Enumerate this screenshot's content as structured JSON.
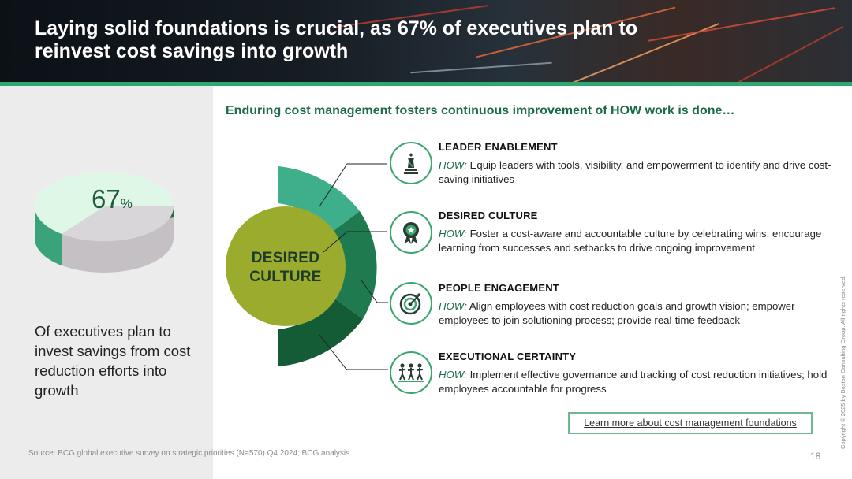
{
  "header": {
    "title_line1": "Laying solid foundations is crucial, as 67% of executives plan to",
    "title_line2": "reinvest cost savings into growth"
  },
  "stat": {
    "value": "67",
    "unit": "%",
    "share": 0.67,
    "label": "Of executives plan to invest savings from cost reduction efforts into growth"
  },
  "subheading": "Enduring cost management fosters continuous improvement of HOW work is done…",
  "wheel": {
    "center_line1": "DESIRED",
    "center_line2": "CULTURE"
  },
  "items": [
    {
      "title": "LEADER ENABLEMENT",
      "how": "HOW:",
      "desc": "Equip leaders with tools, visibility, and empowerment to identify and drive cost-saving initiatives",
      "icon": "chess-piece-icon"
    },
    {
      "title": "DESIRED CULTURE",
      "how": "HOW:",
      "desc": "Foster a cost-aware and accountable culture by celebrating wins; encourage learning from successes and setbacks to drive ongoing improvement",
      "icon": "award-badge-icon"
    },
    {
      "title": "PEOPLE ENGAGEMENT",
      "how": "HOW:",
      "desc": "Align employees with cost reduction goals and growth vision; empower employees to join solutioning process; provide real-time feedback",
      "icon": "target-icon"
    },
    {
      "title": "EXECUTIONAL CERTAINTY",
      "how": "HOW:",
      "desc": "Implement effective governance and tracking of cost reduction initiatives; hold employees accountable for progress",
      "icon": "team-running-icon"
    }
  ],
  "learn_more": "Learn more about cost management foundations",
  "source": "Source: BCG global executive survey on strategic priorities (N=570) Q4 2024; BCG analysis",
  "page_number": "18",
  "copyright": "Copyright © 2025 by Boston Consulting Group. All rights reserved.",
  "colors": {
    "brand_green": "#1b6b46",
    "accent_green": "#2fa870",
    "teal": "#3fae8a",
    "mid_green": "#1f7a50",
    "dark_green": "#145c36",
    "olive": "#9bab2e"
  }
}
